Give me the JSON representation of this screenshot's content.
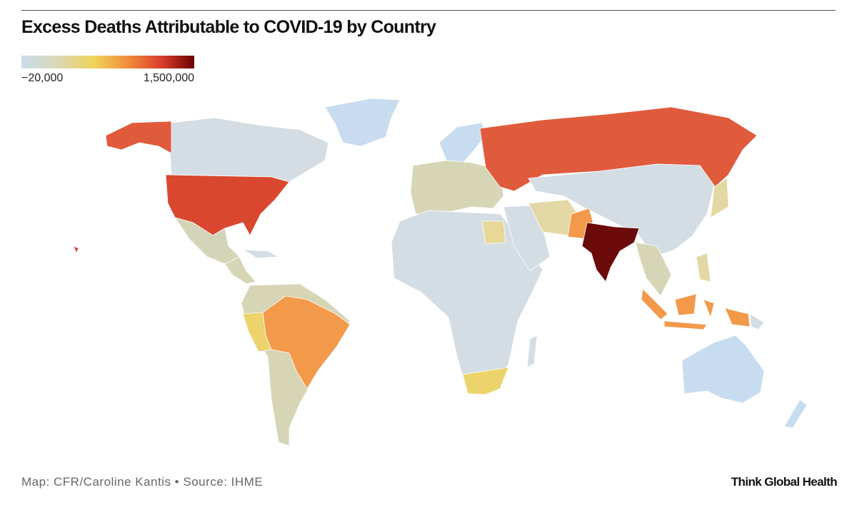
{
  "header": {
    "title": "Excess Deaths Attributable to COVID-19 by Country"
  },
  "legend": {
    "min_label": "−20,000",
    "max_label": "1,500,000"
  },
  "footer": {
    "credit": "Map: CFR/Caroline Kantis • Source: IHME",
    "brand": "Think Global Health"
  }
}
